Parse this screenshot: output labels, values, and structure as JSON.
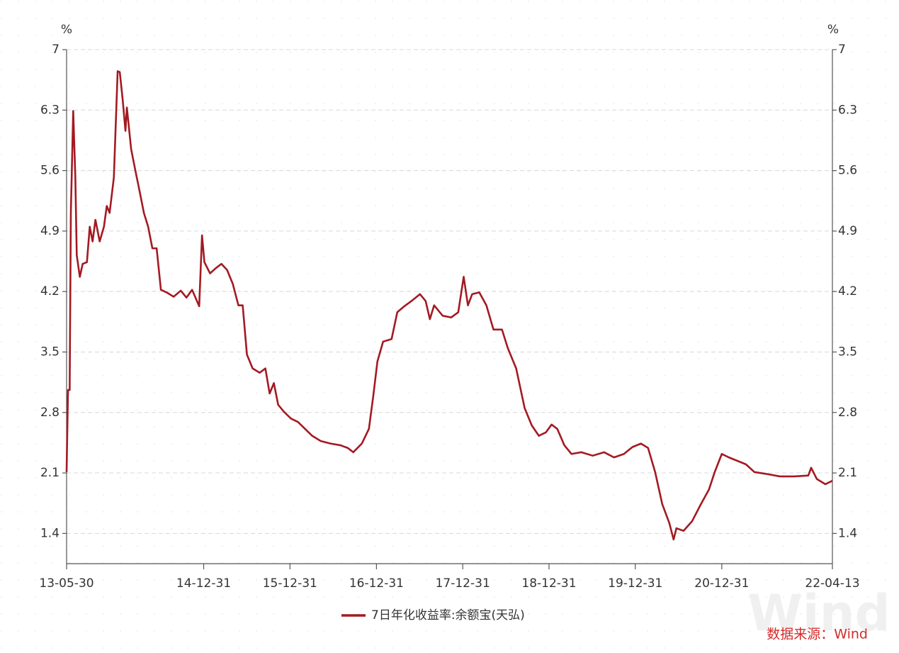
{
  "chart_data": {
    "type": "line",
    "y_unit": "%",
    "y2_unit": "%",
    "source": "数据来源：Wind",
    "watermark": "Wind",
    "xlim": [
      "2013-05-30",
      "2022-04-13"
    ],
    "xticks": [
      {
        "value": "2013-05-30",
        "label": "13-05-30"
      },
      {
        "value": "2014-12-31",
        "label": "14-12-31"
      },
      {
        "value": "2015-12-31",
        "label": "15-12-31"
      },
      {
        "value": "2016-12-31",
        "label": "16-12-31"
      },
      {
        "value": "2017-12-31",
        "label": "17-12-31"
      },
      {
        "value": "2018-12-31",
        "label": "18-12-31"
      },
      {
        "value": "2019-12-31",
        "label": "19-12-31"
      },
      {
        "value": "2020-12-31",
        "label": "20-12-31"
      },
      {
        "value": "2022-04-13",
        "label": "22-04-13"
      }
    ],
    "ylim": [
      1.05,
      7
    ],
    "yticks": [
      7,
      6.3,
      5.6,
      4.9,
      4.2,
      3.5,
      2.8,
      2.1,
      1.4
    ],
    "y2lim": [
      1.05,
      7
    ],
    "y2ticks": [
      7,
      6.3,
      5.6,
      4.9,
      4.2,
      3.5,
      2.8,
      2.1,
      1.4
    ],
    "grid": true,
    "legend": "bottom",
    "x": [
      "2013-05-30",
      "2013-06-05",
      "2013-06-12",
      "2013-06-17",
      "2013-06-27",
      "2013-07-06",
      "2013-07-12",
      "2013-07-25",
      "2013-08-06",
      "2013-08-24",
      "2013-09-05",
      "2013-09-17",
      "2013-09-29",
      "2013-10-17",
      "2013-11-04",
      "2013-11-16",
      "2013-11-28",
      "2013-12-16",
      "2014-01-01",
      "2014-01-10",
      "2014-01-22",
      "2014-02-03",
      "2014-02-09",
      "2014-02-27",
      "2014-03-17",
      "2014-04-04",
      "2014-04-22",
      "2014-05-10",
      "2014-05-28",
      "2014-06-15",
      "2014-07-03",
      "2014-07-27",
      "2014-08-26",
      "2014-09-25",
      "2014-10-19",
      "2014-11-12",
      "2014-12-12",
      "2014-12-24",
      "2015-01-03",
      "2015-01-27",
      "2015-02-20",
      "2015-03-16",
      "2015-04-09",
      "2015-05-03",
      "2015-05-27",
      "2015-06-14",
      "2015-07-02",
      "2015-07-26",
      "2015-08-25",
      "2015-09-18",
      "2015-10-06",
      "2015-10-24",
      "2015-11-11",
      "2015-12-05",
      "2016-01-04",
      "2016-02-03",
      "2016-03-04",
      "2016-04-03",
      "2016-05-09",
      "2016-06-20",
      "2016-08-01",
      "2016-08-31",
      "2016-09-24",
      "2016-10-30",
      "2016-11-29",
      "2016-12-17",
      "2017-01-04",
      "2017-01-28",
      "2017-03-05",
      "2017-03-29",
      "2017-04-28",
      "2017-05-28",
      "2017-07-03",
      "2017-07-27",
      "2017-08-14",
      "2017-09-01",
      "2017-10-07",
      "2017-11-12",
      "2017-12-12",
      "2018-01-04",
      "2018-01-22",
      "2018-02-09",
      "2018-03-11",
      "2018-04-10",
      "2018-05-10",
      "2018-06-15",
      "2018-07-09",
      "2018-08-14",
      "2018-09-19",
      "2018-10-19",
      "2018-11-18",
      "2018-12-18",
      "2019-01-11",
      "2019-02-04",
      "2019-03-06",
      "2019-04-05",
      "2019-05-17",
      "2019-07-04",
      "2019-08-21",
      "2019-10-02",
      "2019-11-13",
      "2019-12-19",
      "2020-01-24",
      "2020-02-23",
      "2020-03-24",
      "2020-04-23",
      "2020-05-23",
      "2020-06-10",
      "2020-06-22",
      "2020-07-22",
      "2020-08-27",
      "2020-10-02",
      "2020-11-07",
      "2020-12-01",
      "2020-12-31",
      "2021-01-30",
      "2021-03-07",
      "2021-04-12",
      "2021-05-18",
      "2021-07-05",
      "2021-09-03",
      "2021-11-02",
      "2022-01-01",
      "2022-01-13",
      "2022-02-06",
      "2022-03-14",
      "2022-04-13"
    ],
    "series": [
      {
        "name": "7日年化收益率:余额宝(天弘)",
        "color": "#a31a22",
        "values": [
          2.11,
          3.06,
          3.06,
          5.11,
          6.29,
          5.52,
          4.62,
          4.37,
          4.52,
          4.54,
          4.95,
          4.78,
          5.03,
          4.78,
          4.95,
          5.19,
          5.11,
          5.52,
          6.75,
          6.74,
          6.43,
          6.06,
          6.33,
          5.85,
          5.6,
          5.36,
          5.11,
          4.95,
          4.7,
          4.7,
          4.22,
          4.19,
          4.14,
          4.21,
          4.13,
          4.22,
          4.03,
          4.85,
          4.54,
          4.41,
          4.47,
          4.52,
          4.45,
          4.29,
          4.04,
          4.04,
          3.47,
          3.31,
          3.26,
          3.31,
          3.02,
          3.14,
          2.89,
          2.81,
          2.73,
          2.69,
          2.61,
          2.53,
          2.47,
          2.44,
          2.42,
          2.39,
          2.34,
          2.44,
          2.61,
          2.98,
          3.39,
          3.62,
          3.65,
          3.96,
          4.03,
          4.09,
          4.17,
          4.09,
          3.88,
          4.04,
          3.92,
          3.9,
          3.96,
          4.37,
          4.04,
          4.17,
          4.19,
          4.04,
          3.76,
          3.76,
          3.55,
          3.31,
          2.85,
          2.65,
          2.53,
          2.57,
          2.66,
          2.61,
          2.42,
          2.32,
          2.34,
          2.3,
          2.34,
          2.28,
          2.32,
          2.4,
          2.44,
          2.39,
          2.11,
          1.74,
          1.52,
          1.33,
          1.46,
          1.43,
          1.54,
          1.73,
          1.91,
          2.11,
          2.32,
          2.28,
          2.24,
          2.2,
          2.11,
          2.09,
          2.06,
          2.06,
          2.07,
          2.16,
          2.03,
          1.97,
          2.01
        ]
      }
    ]
  }
}
